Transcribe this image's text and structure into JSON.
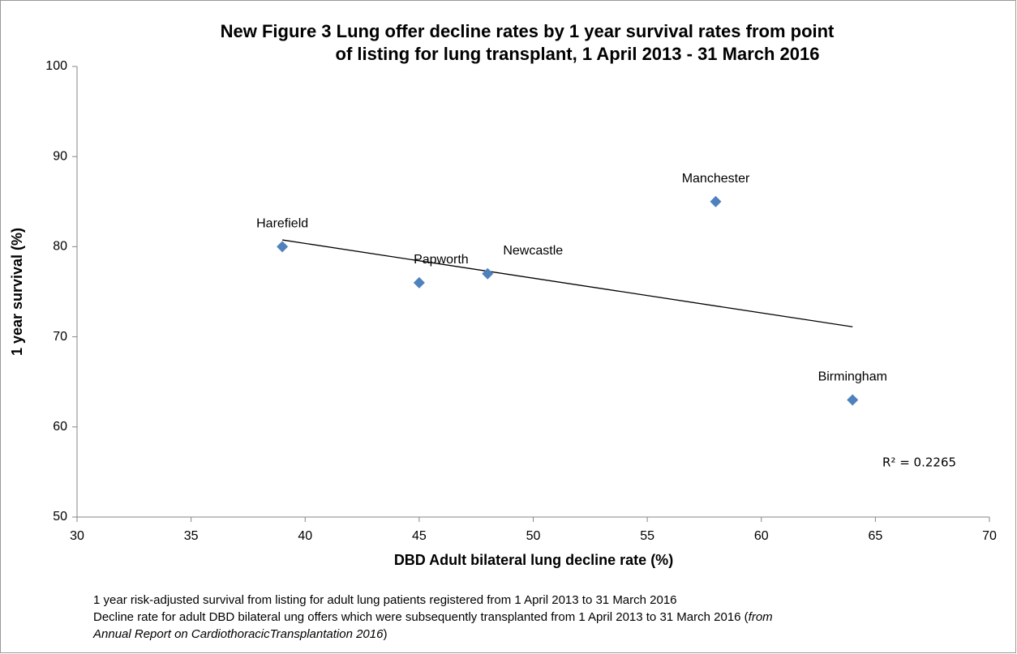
{
  "chart_data": {
    "type": "scatter",
    "title": [
      "New Figure 3   Lung offer decline rates by 1 year survival rates from point",
      "of listing for lung transplant, 1 April 2013 - 31 March 2016"
    ],
    "x_label": "DBD Adult bilateral lung decline rate (%)",
    "y_label": "1 year survival (%)",
    "labels": [
      "Harefield",
      "Papworth",
      "Newcastle",
      "Manchester",
      "Birmingham"
    ],
    "x": [
      39,
      45,
      48,
      58,
      64
    ],
    "values": [
      80,
      76,
      77,
      85,
      63
    ],
    "color": "#4f81bd",
    "trendline": true,
    "trendline_color": "#000000",
    "annotation": "R² = 0.2265",
    "xlim": [
      30,
      70
    ],
    "xticks": [
      30,
      35,
      40,
      45,
      50,
      55,
      60,
      65,
      70
    ],
    "ylim": [
      50,
      100
    ],
    "yticks": [
      50,
      60,
      70,
      80,
      90,
      100
    ],
    "grid": false,
    "notes": [
      [
        {
          "text": "1 year risk-adjusted survival from listing for adult lung patients registered from 1 April 2013 to 31 March 2016"
        }
      ],
      [
        {
          "text": "Decline rate for adult DBD bilateral ung offers which were subsequently transplanted from 1 April 2013 to 31 March 2016 ("
        },
        {
          "text": "from",
          "italic": true
        }
      ],
      [
        {
          "text": "Annual Report on CardiothoracicTransplantation 2016",
          "italic": true
        },
        {
          "text": ")"
        }
      ]
    ]
  }
}
